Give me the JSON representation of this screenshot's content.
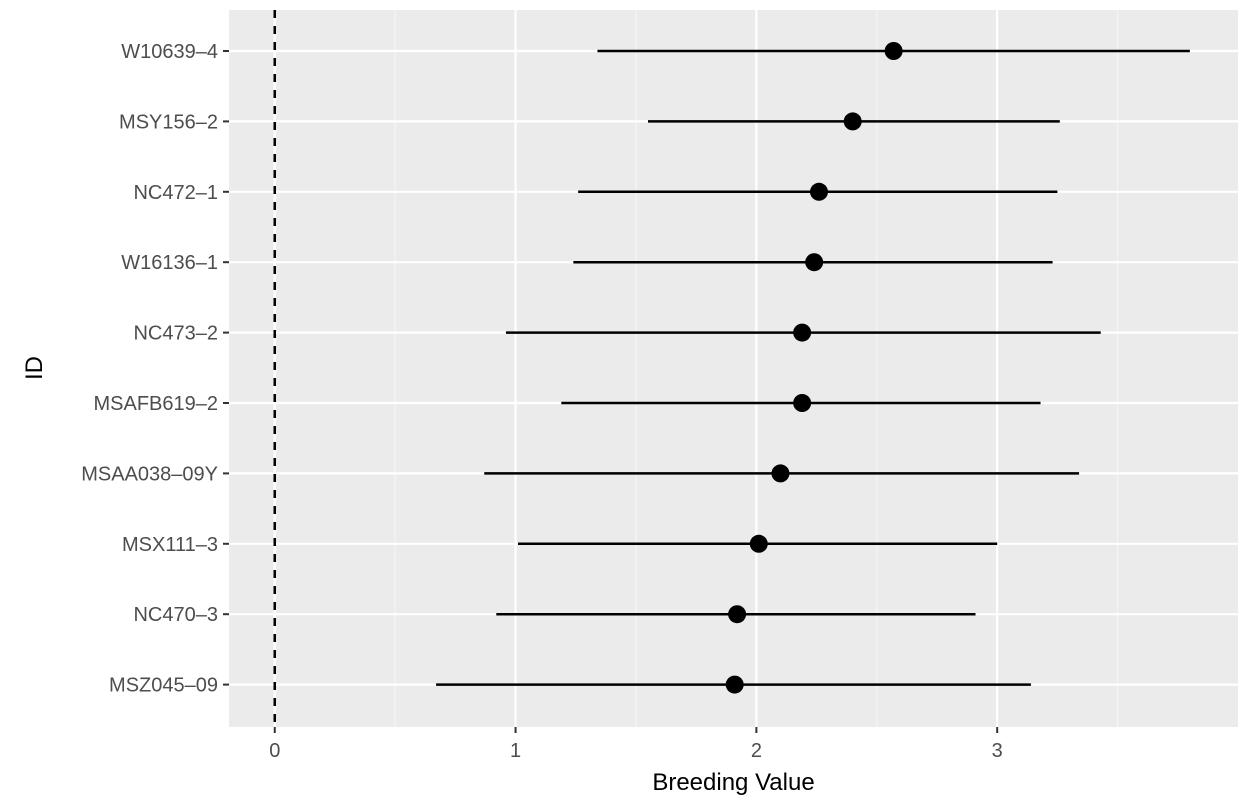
{
  "chart_data": {
    "type": "scatter",
    "subtype": "forest-plot",
    "title": "",
    "xlabel": "Breeding Value",
    "ylabel": "ID",
    "xlim": [
      -0.19,
      4.0
    ],
    "x_ticks": [
      0,
      1,
      2,
      3
    ],
    "grid": true,
    "legend": "none",
    "reference_line": {
      "x": 0,
      "style": "dashed"
    },
    "categories": [
      "W10639–4",
      "MSY156–2",
      "NC472–1",
      "W16136–1",
      "NC473–2",
      "MSAFB619–2",
      "MSAA038–09Y",
      "MSX111–3",
      "NC470–3",
      "MSZ045–09"
    ],
    "points": [
      {
        "id": "W10639–4",
        "value": 2.57,
        "lower": 1.34,
        "upper": 3.8
      },
      {
        "id": "MSY156–2",
        "value": 2.4,
        "lower": 1.55,
        "upper": 3.26
      },
      {
        "id": "NC472–1",
        "value": 2.26,
        "lower": 1.26,
        "upper": 3.25
      },
      {
        "id": "W16136–1",
        "value": 2.24,
        "lower": 1.24,
        "upper": 3.23
      },
      {
        "id": "NC473–2",
        "value": 2.19,
        "lower": 0.96,
        "upper": 3.43
      },
      {
        "id": "MSAFB619–2",
        "value": 2.19,
        "lower": 1.19,
        "upper": 3.18
      },
      {
        "id": "MSAA038–09Y",
        "value": 2.1,
        "lower": 0.87,
        "upper": 3.34
      },
      {
        "id": "MSX111–3",
        "value": 2.01,
        "lower": 1.01,
        "upper": 3.0
      },
      {
        "id": "NC470–3",
        "value": 1.92,
        "lower": 0.92,
        "upper": 2.91
      },
      {
        "id": "MSZ045–09",
        "value": 1.91,
        "lower": 0.67,
        "upper": 3.14
      }
    ],
    "colors": {
      "panel_background": "#ebebeb",
      "grid_major": "#ffffff",
      "grid_minor": "#f5f5f5",
      "marks": "#000000",
      "tick_text": "#4d4d4d"
    }
  }
}
